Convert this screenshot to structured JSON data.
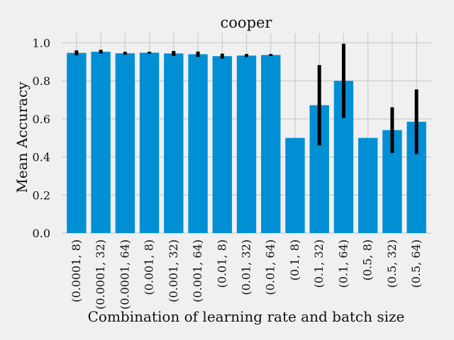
{
  "chart_data": {
    "type": "bar",
    "title": "cooper",
    "xlabel": "Combination of learning rate and batch size",
    "ylabel": "Mean Accuracy",
    "ylim": [
      0,
      1.05
    ],
    "yticks": [
      "0.0",
      "0.2",
      "0.4",
      "0.6",
      "0.8",
      "1.0"
    ],
    "grid": true,
    "bar_color": "#008fd5",
    "error_color": "#000000",
    "background": "#f0f0f0",
    "grid_color": "#cbcbcb",
    "categories": [
      "(0.0001, 8)",
      "(0.0001, 32)",
      "(0.0001, 64)",
      "(0.001, 8)",
      "(0.001, 32)",
      "(0.001, 64)",
      "(0.01, 8)",
      "(0.01, 32)",
      "(0.01, 64)",
      "(0.1, 8)",
      "(0.1, 32)",
      "(0.1, 64)",
      "(0.5, 8)",
      "(0.5, 32)",
      "(0.5, 64)"
    ],
    "values": [
      0.947,
      0.953,
      0.945,
      0.948,
      0.944,
      0.94,
      0.93,
      0.933,
      0.936,
      0.5,
      0.672,
      0.8,
      0.5,
      0.541,
      0.585
    ],
    "errors": [
      0.013,
      0.01,
      0.008,
      0.005,
      0.013,
      0.014,
      0.013,
      0.008,
      0.005,
      0.0,
      0.211,
      0.195,
      0.0,
      0.12,
      0.17
    ]
  }
}
